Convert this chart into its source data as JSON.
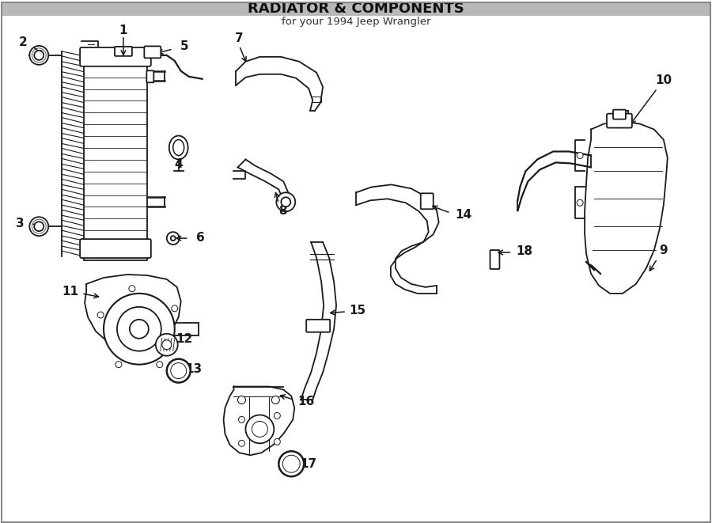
{
  "title": "RADIATOR & COMPONENTS",
  "subtitle": "for your 1994 Jeep Wrangler",
  "bg_color": "#ffffff",
  "line_color": "#1a1a1a",
  "label_color": "#1a1a1a",
  "lw": 1.3
}
